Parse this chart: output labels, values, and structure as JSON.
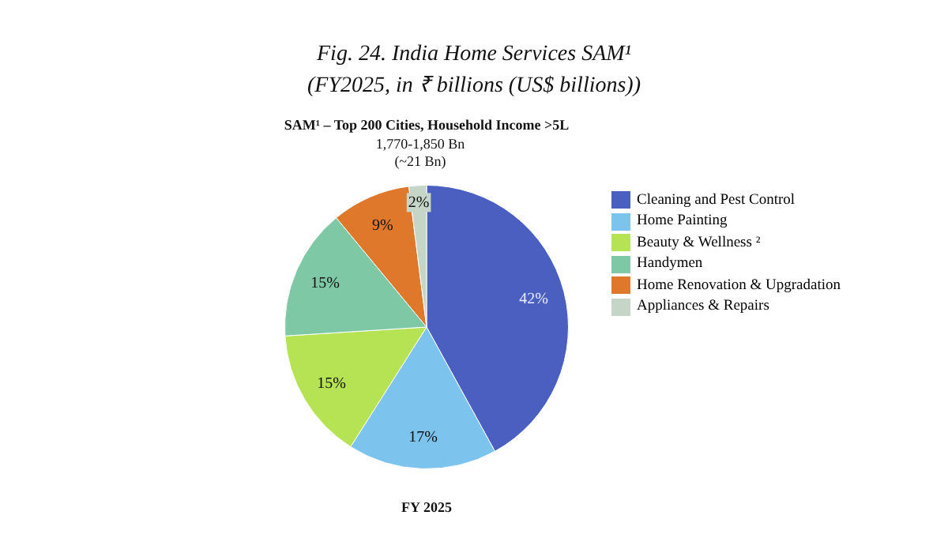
{
  "chart_data": {
    "type": "pie",
    "title": "Fig. 24. India Home Services SAM¹",
    "subtitle": "(FY2025, in ₹ billions (US$ billions))",
    "annotations": [
      "SAM¹ – Top 200 Cities, Household Income >5L",
      "1,770-1,850 Bn",
      "(~21 Bn)",
      "FY 2025"
    ],
    "categories": [
      "Cleaning and Pest Control",
      "Home Painting",
      "Beauty & Wellness ²",
      "Handymen",
      "Home Renovation & Upgradation",
      "Appliances & Repairs"
    ],
    "values": [
      42,
      17,
      15,
      15,
      9,
      2
    ],
    "value_labels": [
      "42%",
      "17%",
      "15%",
      "15%",
      "9%",
      "2%"
    ],
    "colors": [
      "#4a5fbf",
      "#7cc3ee",
      "#b5e353",
      "#7ec8a6",
      "#e0782b",
      "#c5d5c8"
    ],
    "legend": "right"
  }
}
